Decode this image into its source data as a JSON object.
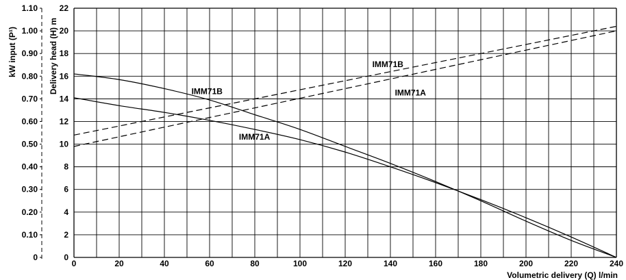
{
  "chart_data": {
    "type": "line",
    "xlabel": "Volumetric delivery (Q) l/min",
    "ylabel_left": "Delivery head (H) m",
    "ylabel_power": "kW input (P¹)",
    "xlim": [
      0,
      240
    ],
    "ylim": [
      0,
      22
    ],
    "power_lim": [
      0,
      1.1
    ],
    "grid": true,
    "x_ticks": [
      "0",
      "20",
      "40",
      "60",
      "80",
      "100",
      "120",
      "140",
      "160",
      "180",
      "200",
      "220",
      "240"
    ],
    "y_ticks": [
      "0",
      "2",
      "4",
      "6",
      "8",
      "10",
      "12",
      "14",
      "16",
      "18",
      "20",
      "22"
    ],
    "power_ticks": [
      "0",
      "0.10",
      "0.20",
      "0.30",
      "0.40",
      "0.50",
      "0.60",
      "0.70",
      "0.80",
      "0.90",
      "1.00",
      "1.10"
    ],
    "series": [
      {
        "name": "IMM71B",
        "kind": "head",
        "style": "solid",
        "x": [
          0,
          20,
          40,
          60,
          80,
          100,
          120,
          140,
          160,
          180,
          200,
          220,
          240
        ],
        "y": [
          16.2,
          15.7,
          14.9,
          13.9,
          12.6,
          11.3,
          9.8,
          8.3,
          6.7,
          5.0,
          3.2,
          1.5,
          0.0
        ]
      },
      {
        "name": "IMM71A",
        "kind": "head",
        "style": "solid",
        "x": [
          0,
          20,
          40,
          60,
          80,
          100,
          120,
          140,
          160,
          180,
          200,
          220,
          240
        ],
        "y": [
          14.1,
          13.4,
          12.8,
          12.1,
          11.3,
          10.4,
          9.3,
          8.0,
          6.6,
          5.1,
          3.5,
          1.8,
          0.0
        ]
      },
      {
        "name": "IMM71B",
        "kind": "power",
        "style": "dashed",
        "x": [
          0,
          240
        ],
        "y": [
          0.54,
          1.02
        ]
      },
      {
        "name": "IMM71A",
        "kind": "power",
        "style": "dashed",
        "x": [
          0,
          240
        ],
        "y": [
          0.49,
          1.0
        ]
      }
    ],
    "annotations": [
      {
        "text": "IMM71B",
        "x": 52,
        "y": 14.4
      },
      {
        "text": "IMM71A",
        "x": 73,
        "y": 10.4
      },
      {
        "text": "IMM71B",
        "x": 132,
        "y": 16.8
      },
      {
        "text": "IMM71A",
        "x": 142,
        "y": 14.3
      }
    ]
  }
}
